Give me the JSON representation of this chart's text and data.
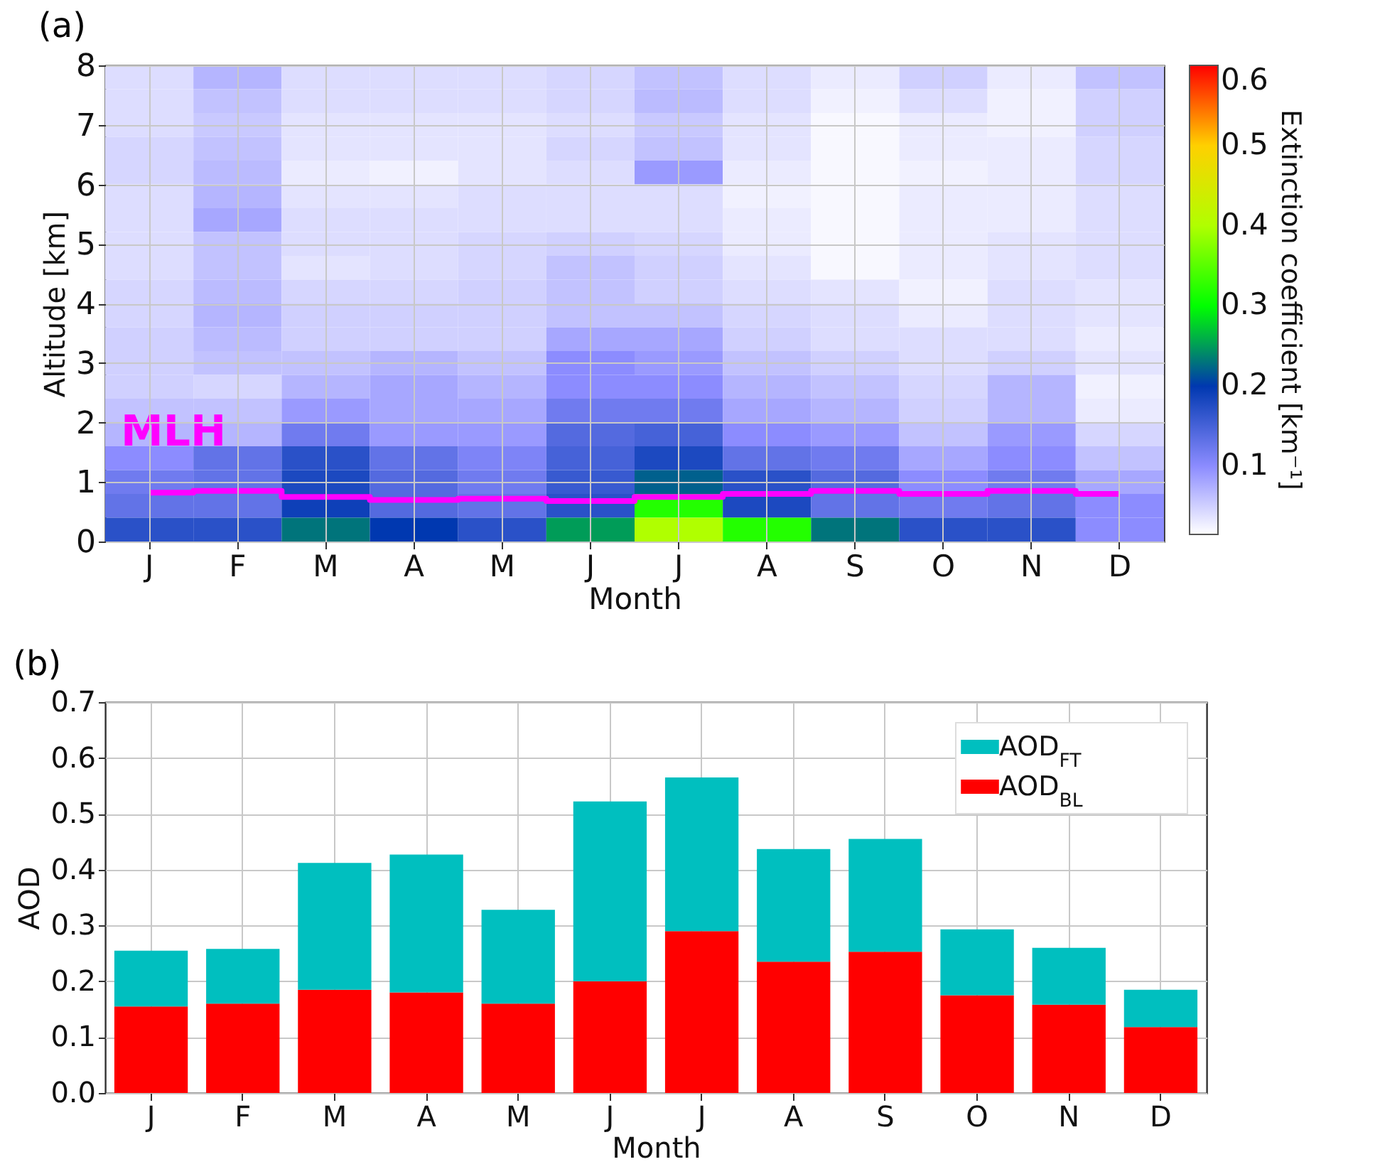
{
  "chart_data": [
    {
      "type": "heatmap",
      "title": "(a)",
      "xlabel": "Month",
      "ylabel": "Altitude [km]",
      "clabel": "Extinction coefficient [km⁻¹]",
      "categories": [
        "J",
        "F",
        "M",
        "A",
        "M",
        "J",
        "J",
        "A",
        "S",
        "O",
        "N",
        "D"
      ],
      "cells": [
        [
          0.04,
          0.07,
          0.04,
          0.04,
          0.04,
          0.045,
          0.06,
          0.04,
          0.03,
          0.05,
          0.03,
          0.06
        ],
        [
          0.04,
          0.06,
          0.04,
          0.04,
          0.04,
          0.045,
          0.065,
          0.04,
          0.025,
          0.04,
          0.025,
          0.05
        ],
        [
          0.04,
          0.055,
          0.035,
          0.035,
          0.035,
          0.04,
          0.055,
          0.035,
          0.02,
          0.03,
          0.025,
          0.05
        ],
        [
          0.045,
          0.06,
          0.035,
          0.035,
          0.035,
          0.045,
          0.06,
          0.035,
          0.02,
          0.03,
          0.03,
          0.045
        ],
        [
          0.045,
          0.065,
          0.03,
          0.025,
          0.035,
          0.04,
          0.09,
          0.03,
          0.02,
          0.025,
          0.03,
          0.045
        ],
        [
          0.04,
          0.07,
          0.035,
          0.035,
          0.04,
          0.04,
          0.04,
          0.025,
          0.02,
          0.03,
          0.03,
          0.04
        ],
        [
          0.04,
          0.08,
          0.04,
          0.04,
          0.04,
          0.04,
          0.04,
          0.03,
          0.02,
          0.03,
          0.03,
          0.04
        ],
        [
          0.04,
          0.06,
          0.04,
          0.04,
          0.045,
          0.05,
          0.045,
          0.03,
          0.02,
          0.03,
          0.035,
          0.04
        ],
        [
          0.04,
          0.06,
          0.035,
          0.04,
          0.045,
          0.06,
          0.05,
          0.035,
          0.02,
          0.03,
          0.035,
          0.04
        ],
        [
          0.045,
          0.065,
          0.045,
          0.045,
          0.05,
          0.06,
          0.05,
          0.04,
          0.035,
          0.025,
          0.04,
          0.035
        ],
        [
          0.045,
          0.07,
          0.05,
          0.05,
          0.05,
          0.06,
          0.06,
          0.045,
          0.04,
          0.03,
          0.04,
          0.035
        ],
        [
          0.05,
          0.065,
          0.05,
          0.05,
          0.05,
          0.08,
          0.08,
          0.05,
          0.04,
          0.04,
          0.04,
          0.03
        ],
        [
          0.05,
          0.06,
          0.06,
          0.07,
          0.06,
          0.1,
          0.09,
          0.06,
          0.05,
          0.04,
          0.05,
          0.035
        ],
        [
          0.05,
          0.045,
          0.07,
          0.08,
          0.07,
          0.1,
          0.1,
          0.07,
          0.06,
          0.045,
          0.07,
          0.025
        ],
        [
          0.06,
          0.06,
          0.09,
          0.08,
          0.08,
          0.12,
          0.12,
          0.08,
          0.07,
          0.05,
          0.07,
          0.03
        ],
        [
          0.07,
          0.07,
          0.12,
          0.09,
          0.09,
          0.14,
          0.15,
          0.1,
          0.09,
          0.06,
          0.09,
          0.045
        ],
        [
          0.1,
          0.13,
          0.17,
          0.13,
          0.11,
          0.15,
          0.18,
          0.13,
          0.12,
          0.08,
          0.1,
          0.06
        ],
        [
          0.12,
          0.13,
          0.18,
          0.14,
          0.12,
          0.16,
          0.22,
          0.17,
          0.14,
          0.1,
          0.12,
          0.08
        ],
        [
          0.13,
          0.13,
          0.19,
          0.14,
          0.13,
          0.17,
          0.32,
          0.18,
          0.13,
          0.12,
          0.13,
          0.1
        ],
        [
          0.17,
          0.17,
          0.23,
          0.2,
          0.17,
          0.25,
          0.4,
          0.32,
          0.23,
          0.17,
          0.17,
          0.1
        ]
      ],
      "clim": [
        0.015,
        0.6
      ],
      "cticks": [
        0.1,
        0.2,
        0.3,
        0.4,
        0.5,
        0.6
      ],
      "ylim": [
        0,
        8
      ],
      "yticks": [
        0,
        1,
        2,
        3,
        4,
        5,
        6,
        7,
        8
      ],
      "grid": true,
      "series": [
        {
          "name": "MLH",
          "type": "step",
          "color": "#ff00ff",
          "values": [
            0.82,
            0.85,
            0.75,
            0.7,
            0.72,
            0.68,
            0.75,
            0.8,
            0.85,
            0.8,
            0.85,
            0.8
          ]
        }
      ]
    },
    {
      "type": "bar",
      "title": "(b)",
      "xlabel": "Month",
      "ylabel": "AOD",
      "categories": [
        "J",
        "F",
        "M",
        "A",
        "M",
        "J",
        "J",
        "A",
        "S",
        "O",
        "N",
        "D"
      ],
      "stacked": true,
      "series": [
        {
          "name": "AOD$_{BL}$",
          "color": "#ff0000",
          "values": [
            0.155,
            0.16,
            0.185,
            0.18,
            0.16,
            0.2,
            0.29,
            0.235,
            0.253,
            0.175,
            0.158,
            0.118
          ]
        },
        {
          "name": "AOD$_{FT}$",
          "color": "#00bfbf",
          "values": [
            0.1,
            0.098,
            0.227,
            0.247,
            0.168,
            0.322,
            0.275,
            0.202,
            0.202,
            0.118,
            0.102,
            0.067
          ]
        }
      ],
      "ylim": [
        0,
        0.7
      ],
      "yticks": [
        {
          "value": 0,
          "label": "0.0"
        },
        0.1,
        0.2,
        0.3,
        0.4,
        0.5,
        0.6,
        0.7
      ],
      "grid": true,
      "legend": "top right"
    }
  ]
}
